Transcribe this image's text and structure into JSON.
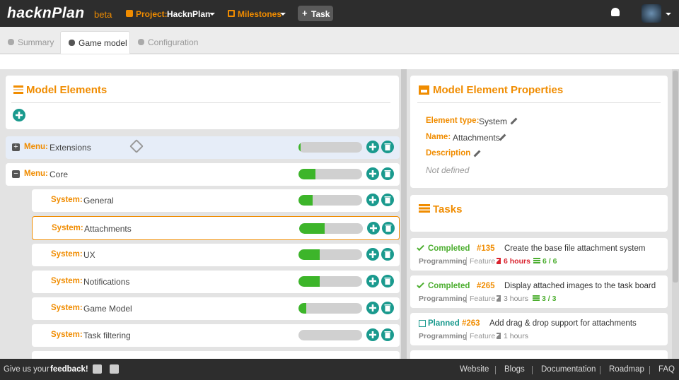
{
  "header": {
    "logo": "hacknPlan",
    "beta": "beta",
    "project_label": "Project:",
    "project": "HacknPlan",
    "milestones": "Milestones",
    "task_button": "Task"
  },
  "tabs": [
    "Summary",
    "Game model",
    "Configuration"
  ],
  "model_elements": {
    "title": "Model Elements",
    "rows": [
      {
        "kind": "Menu:",
        "name": "Extensions",
        "progress": 3
      },
      {
        "kind": "Menu:",
        "name": "Core",
        "progress": 27
      },
      {
        "kind": "System:",
        "name": "General",
        "progress": 22
      },
      {
        "kind": "System:",
        "name": "Attachments",
        "progress": 40
      },
      {
        "kind": "System:",
        "name": "UX",
        "progress": 33
      },
      {
        "kind": "System:",
        "name": "Notifications",
        "progress": 33
      },
      {
        "kind": "System:",
        "name": "Game Model",
        "progress": 12
      },
      {
        "kind": "System:",
        "name": "Task filtering",
        "progress": 0
      }
    ]
  },
  "properties": {
    "title": "Model Element Properties",
    "fields": [
      {
        "label": "Element type:",
        "value": "System"
      },
      {
        "label": "Name:",
        "value": "Attachments"
      },
      {
        "label": "Description",
        "value": "Not defined"
      }
    ]
  },
  "tasks": {
    "title": "Tasks",
    "items": [
      {
        "status": "Completed",
        "status_color": "#4cae2f",
        "id": "#135",
        "title": "Create the base file attachment system",
        "discipline": "Programming",
        "type": "Feature",
        "hours": "6 hours",
        "hours_color": "#d9232e",
        "checklist": "6 / 6"
      },
      {
        "status": "Completed",
        "status_color": "#4cae2f",
        "id": "#265",
        "title": "Display attached images to the task board",
        "discipline": "Programming",
        "type": "Feature",
        "hours": "3 hours",
        "hours_color": "#888888",
        "checklist": "3 / 3"
      },
      {
        "status": "Planned",
        "status_color": "#1a9a8e",
        "id": "#263",
        "title": "Add drag & drop support for attachments",
        "discipline": "Programming",
        "type": "Feature",
        "hours": "1 hours",
        "hours_color": "#888888"
      }
    ]
  },
  "footer": {
    "feedback_prefix": "Give us your",
    "feedback": "feedback!",
    "links": [
      "Website",
      "Blogs",
      "Documentation",
      "Roadmap",
      "FAQ"
    ]
  }
}
